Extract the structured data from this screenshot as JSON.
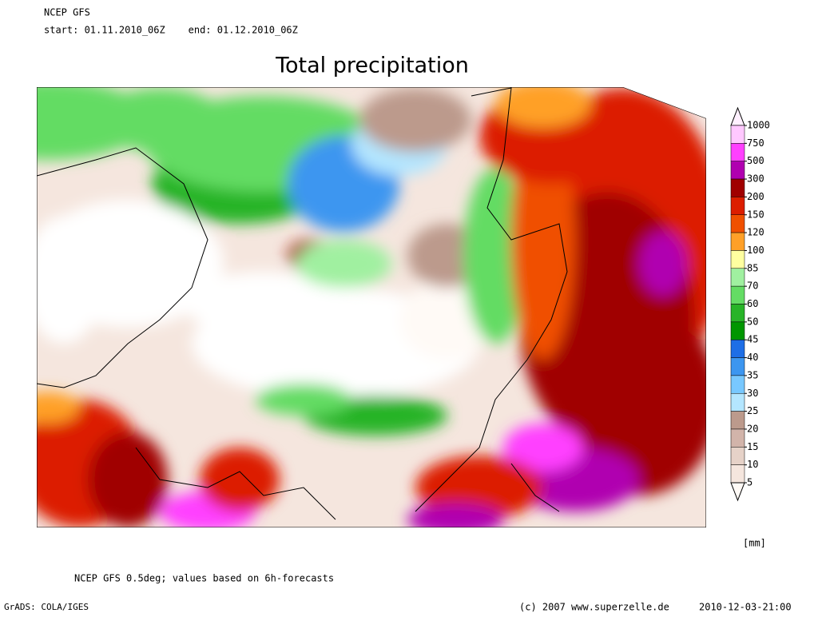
{
  "header": {
    "model": "NCEP GFS",
    "period": "start: 01.11.2010_06Z    end: 01.12.2010_06Z"
  },
  "title": "Total precipitation",
  "legend": {
    "unit": "[mm]",
    "levels": [
      1000,
      750,
      500,
      300,
      200,
      150,
      120,
      100,
      85,
      70,
      60,
      50,
      45,
      40,
      35,
      30,
      25,
      20,
      15,
      10,
      5
    ],
    "colors": [
      "#fff0ff",
      "#ffc8ff",
      "#ff40ff",
      "#b000b0",
      "#a00000",
      "#dc1e00",
      "#f05000",
      "#ffa028",
      "#ffffa0",
      "#a0f0a0",
      "#64dc64",
      "#28b428",
      "#009600",
      "#1e6ee6",
      "#3c96f0",
      "#78c8ff",
      "#b4e6ff",
      "#bc9a8c",
      "#d2b4aa",
      "#e6d2c8",
      "#f5e6de",
      "#fffaf6"
    ]
  },
  "footer": {
    "note": "NCEP GFS 0.5deg; values based on 6h-forecasts",
    "software": "GrADS: COLA/IGES",
    "copyright": "(c) 2007 www.superzelle.de",
    "timestamp": "2010-12-03-21:00"
  }
}
